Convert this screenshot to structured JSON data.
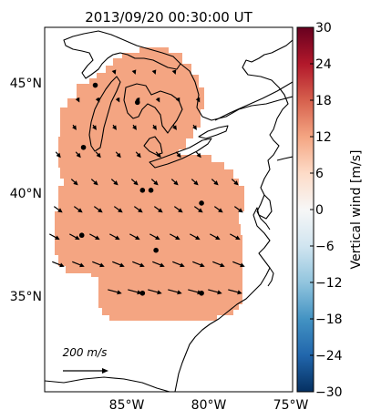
{
  "title": "2013/09/20 00:30:00 UT",
  "map": {
    "lat_ticks": [
      "45°N",
      "40°N",
      "35°N"
    ],
    "lon_ticks": [
      "85°W",
      "80°W",
      "75°W"
    ],
    "lat_values": [
      45,
      40,
      35
    ],
    "lon_values": [
      -85,
      -80,
      -75
    ],
    "lon_range": [
      -89.5,
      -74.8
    ],
    "lat_range": [
      30.7,
      47.7
    ],
    "field_value": 9,
    "field_color": "#f4a582",
    "coast_color": "#000000",
    "arrow_color": "#000000",
    "scale_arrow": {
      "value": 200,
      "unit": "m/s",
      "label": "200 m/s"
    },
    "stations": [
      {
        "lon": -86.5,
        "lat": 45.0
      },
      {
        "lon": -84.0,
        "lat": 44.2
      },
      {
        "lon": -87.2,
        "lat": 42.1
      },
      {
        "lon": -83.7,
        "lat": 40.1
      },
      {
        "lon": -83.2,
        "lat": 40.1
      },
      {
        "lon": -80.2,
        "lat": 39.5
      },
      {
        "lon": -87.3,
        "lat": 38.0
      },
      {
        "lon": -82.9,
        "lat": 37.3
      },
      {
        "lon": -83.7,
        "lat": 35.3
      },
      {
        "lon": -80.2,
        "lat": 35.3
      }
    ]
  },
  "colorbar": {
    "label": "Vertical wind [m/s]",
    "ticks": [
      "30",
      "24",
      "18",
      "12",
      "6",
      "0",
      "−6",
      "−12",
      "−18",
      "−24",
      "−30"
    ],
    "min": -30,
    "max": 30,
    "colors": [
      "#053061",
      "#2166ac",
      "#4393c3",
      "#92c5de",
      "#d1e5f0",
      "#f7f7f7",
      "#fddbc7",
      "#f4a582",
      "#d6604d",
      "#b2182b",
      "#67001f"
    ]
  }
}
